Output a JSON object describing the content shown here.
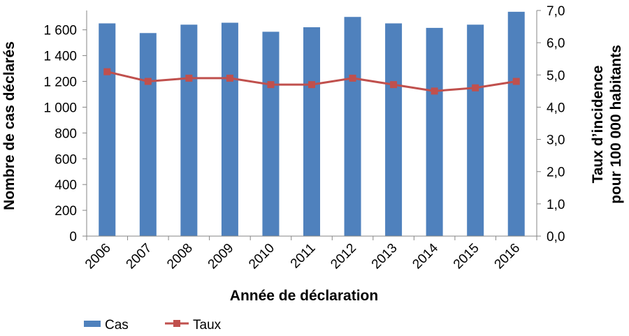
{
  "chart_data": {
    "type": "bar",
    "categories": [
      "2006",
      "2007",
      "2008",
      "2009",
      "2010",
      "2011",
      "2012",
      "2013",
      "2014",
      "2015",
      "2016"
    ],
    "series": [
      {
        "name": "Cas",
        "type": "bar",
        "axis": "left",
        "color": "#4f81bd",
        "values": [
          1650,
          1575,
          1640,
          1655,
          1585,
          1620,
          1700,
          1650,
          1615,
          1640,
          1740
        ]
      },
      {
        "name": "Taux",
        "type": "line",
        "axis": "right",
        "color": "#c0504d",
        "values": [
          5.1,
          4.8,
          4.9,
          4.9,
          4.7,
          4.7,
          4.9,
          4.7,
          4.5,
          4.6,
          4.8
        ]
      }
    ],
    "xlabel": "Année de déclaration",
    "ylabel": "Nombre de cas déclarés",
    "y2label_line1": "Taux d’incidence",
    "y2label_line2": "pour 100 000 habitants",
    "ylim": [
      0,
      1750
    ],
    "y2lim": [
      0,
      7
    ],
    "yticks": [
      "0",
      "200",
      "400",
      "600",
      "800",
      "1 000",
      "1 200",
      "1 400",
      "1 600"
    ],
    "y2ticks": [
      "0,0",
      "1,0",
      "2,0",
      "3,0",
      "4,0",
      "5,0",
      "6,0",
      "7,0"
    ],
    "grid": false,
    "legend_position": "bottom-left"
  }
}
